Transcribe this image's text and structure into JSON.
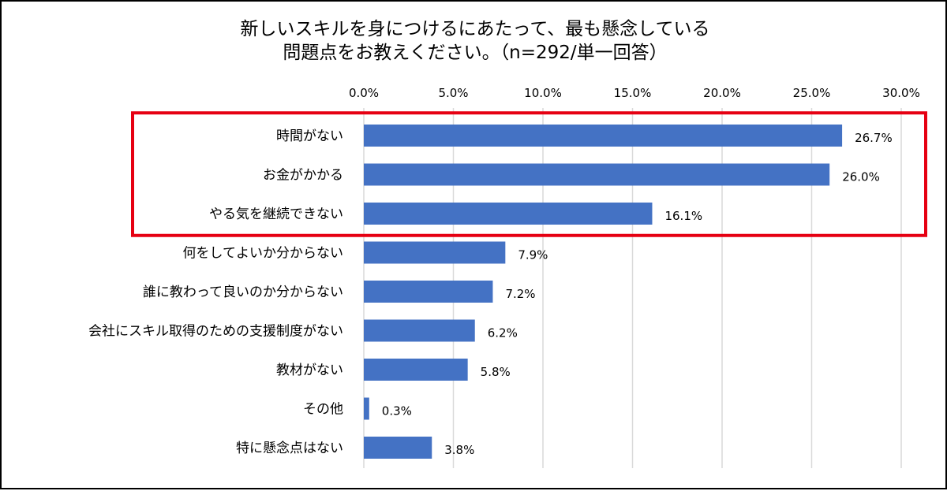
{
  "chart_data": {
    "type": "bar",
    "orientation": "horizontal",
    "title_lines": [
      "新しいスキルを身につけるにあたって、最も懸念している",
      "問題点をお教えください。（n=292/単一回答）"
    ],
    "categories": [
      "時間がない",
      "お金がかかる",
      "やる気を継続できない",
      "何をしてよいか分からない",
      "誰に教わって良いのか分からない",
      "会社にスキル取得のための支援制度がない",
      "教材がない",
      "その他",
      "特に懸念点はない"
    ],
    "values": [
      26.7,
      26.0,
      16.1,
      7.9,
      7.2,
      6.2,
      5.8,
      0.3,
      3.8
    ],
    "value_labels": [
      "26.7%",
      "26.0%",
      "16.1%",
      "7.9%",
      "7.2%",
      "6.2%",
      "5.8%",
      "0.3%",
      "3.8%"
    ],
    "xlim": [
      0,
      30
    ],
    "x_ticks": [
      "0.0%",
      "5.0%",
      "10.0%",
      "15.0%",
      "20.0%",
      "25.0%",
      "30.0%"
    ],
    "x_axis_position": "top",
    "grid": true,
    "highlight": {
      "categories": [
        "時間がない",
        "お金がかかる",
        "やる気を継続できない"
      ],
      "color": "#e60012"
    },
    "colors": {
      "bar": "#4472c4",
      "grid": "#d9d9d9"
    }
  }
}
